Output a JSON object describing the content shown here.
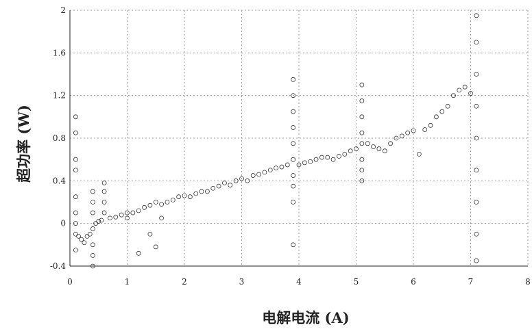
{
  "chart_data": {
    "type": "scatter",
    "title": "",
    "xlabel": "电解电流 (A)",
    "ylabel": "超功率 (W)",
    "xlim": [
      0,
      8
    ],
    "ylim": [
      -0.4,
      2
    ],
    "xticks": [
      0,
      1,
      2,
      3,
      4,
      5,
      6,
      7,
      8
    ],
    "xtick_labels": [
      "0",
      "1",
      "2",
      "3",
      "4",
      "5",
      "6",
      "7",
      "8"
    ],
    "yticks": [
      -0.4,
      0,
      0.4,
      0.8,
      1.2,
      1.6,
      2
    ],
    "ytick_labels": [
      "-0.4",
      "0",
      "0.4",
      "0.8",
      "1.2",
      "1.6",
      "2"
    ],
    "grid": true,
    "legend": "none",
    "marker": "open-circle",
    "series": [
      {
        "points": [
          [
            0.1,
            -0.1
          ],
          [
            0.1,
            0.0
          ],
          [
            0.1,
            0.1
          ],
          [
            0.1,
            0.25
          ],
          [
            0.1,
            0.5
          ],
          [
            0.1,
            0.6
          ],
          [
            0.1,
            0.85
          ],
          [
            0.1,
            1.0
          ],
          [
            0.1,
            -0.25
          ],
          [
            0.15,
            -0.12
          ],
          [
            0.2,
            -0.15
          ],
          [
            0.25,
            -0.18
          ],
          [
            0.3,
            -0.12
          ],
          [
            0.35,
            -0.1
          ],
          [
            0.4,
            -0.4
          ],
          [
            0.4,
            -0.3
          ],
          [
            0.4,
            -0.2
          ],
          [
            0.4,
            -0.05
          ],
          [
            0.4,
            0.1
          ],
          [
            0.4,
            0.2
          ],
          [
            0.4,
            0.3
          ],
          [
            0.45,
            0.0
          ],
          [
            0.5,
            0.02
          ],
          [
            0.55,
            0.03
          ],
          [
            0.6,
            0.2
          ],
          [
            0.6,
            0.3
          ],
          [
            0.6,
            0.38
          ],
          [
            0.6,
            0.1
          ],
          [
            0.7,
            0.05
          ],
          [
            0.8,
            0.06
          ],
          [
            0.9,
            0.08
          ],
          [
            1.0,
            0.1
          ],
          [
            1.0,
            0.05
          ],
          [
            1.1,
            0.1
          ],
          [
            1.2,
            0.12
          ],
          [
            1.2,
            -0.28
          ],
          [
            1.3,
            0.15
          ],
          [
            1.4,
            0.17
          ],
          [
            1.4,
            -0.1
          ],
          [
            1.5,
            0.2
          ],
          [
            1.5,
            -0.22
          ],
          [
            1.6,
            0.18
          ],
          [
            1.6,
            0.05
          ],
          [
            1.7,
            0.2
          ],
          [
            1.8,
            0.22
          ],
          [
            1.9,
            0.25
          ],
          [
            2.0,
            0.26
          ],
          [
            2.1,
            0.25
          ],
          [
            2.2,
            0.28
          ],
          [
            2.3,
            0.3
          ],
          [
            2.4,
            0.3
          ],
          [
            2.5,
            0.33
          ],
          [
            2.6,
            0.35
          ],
          [
            2.7,
            0.38
          ],
          [
            2.8,
            0.36
          ],
          [
            2.9,
            0.4
          ],
          [
            3.0,
            0.42
          ],
          [
            3.1,
            0.4
          ],
          [
            3.2,
            0.45
          ],
          [
            3.3,
            0.46
          ],
          [
            3.4,
            0.48
          ],
          [
            3.5,
            0.5
          ],
          [
            3.6,
            0.52
          ],
          [
            3.7,
            0.53
          ],
          [
            3.8,
            0.55
          ],
          [
            3.9,
            0.2
          ],
          [
            3.9,
            0.35
          ],
          [
            3.9,
            0.45
          ],
          [
            3.9,
            0.6
          ],
          [
            3.9,
            0.75
          ],
          [
            3.9,
            0.9
          ],
          [
            3.9,
            1.05
          ],
          [
            3.9,
            1.2
          ],
          [
            3.9,
            1.35
          ],
          [
            3.9,
            -0.2
          ],
          [
            4.0,
            0.55
          ],
          [
            4.1,
            0.57
          ],
          [
            4.2,
            0.58
          ],
          [
            4.3,
            0.6
          ],
          [
            4.4,
            0.62
          ],
          [
            4.5,
            0.62
          ],
          [
            4.6,
            0.6
          ],
          [
            4.7,
            0.63
          ],
          [
            4.8,
            0.65
          ],
          [
            4.9,
            0.68
          ],
          [
            5.0,
            0.7
          ],
          [
            5.1,
            0.4
          ],
          [
            5.1,
            0.5
          ],
          [
            5.1,
            0.6
          ],
          [
            5.1,
            0.75
          ],
          [
            5.1,
            0.85
          ],
          [
            5.1,
            1.0
          ],
          [
            5.1,
            1.15
          ],
          [
            5.1,
            1.3
          ],
          [
            5.2,
            0.75
          ],
          [
            5.3,
            0.72
          ],
          [
            5.4,
            0.7
          ],
          [
            5.5,
            0.68
          ],
          [
            5.6,
            0.75
          ],
          [
            5.7,
            0.8
          ],
          [
            5.8,
            0.82
          ],
          [
            5.9,
            0.85
          ],
          [
            6.0,
            0.87
          ],
          [
            6.1,
            0.65
          ],
          [
            6.2,
            0.88
          ],
          [
            6.3,
            0.92
          ],
          [
            6.4,
            1.0
          ],
          [
            6.5,
            1.05
          ],
          [
            6.6,
            1.1
          ],
          [
            6.7,
            1.2
          ],
          [
            6.8,
            1.25
          ],
          [
            6.9,
            1.28
          ],
          [
            7.0,
            1.22
          ],
          [
            7.1,
            -0.35
          ],
          [
            7.1,
            -0.1
          ],
          [
            7.1,
            0.2
          ],
          [
            7.1,
            0.5
          ],
          [
            7.1,
            0.8
          ],
          [
            7.1,
            1.1
          ],
          [
            7.1,
            1.4
          ],
          [
            7.1,
            1.7
          ],
          [
            7.1,
            1.95
          ]
        ]
      }
    ]
  }
}
